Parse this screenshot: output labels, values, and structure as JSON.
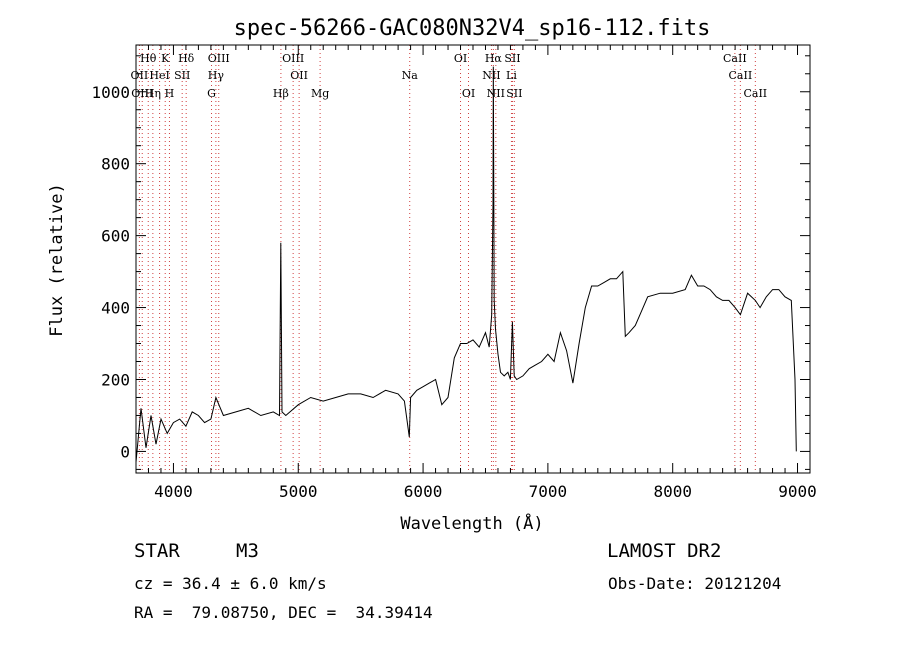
{
  "chart_data": {
    "type": "line",
    "title": "spec-56266-GAC080N32V4_sp16-112.fits",
    "xlabel": "Wavelength (Å)",
    "ylabel": "Flux (relative)",
    "xlim": [
      3700,
      9100
    ],
    "ylim": [
      -60,
      1130
    ],
    "x_ticks": [
      4000,
      5000,
      6000,
      7000,
      8000,
      9000
    ],
    "y_ticks": [
      0,
      200,
      400,
      600,
      800,
      1000
    ],
    "grid": false,
    "series": [
      {
        "color": "#000000",
        "x": [
          3700,
          3740,
          3780,
          3820,
          3860,
          3900,
          3950,
          4000,
          4050,
          4100,
          4150,
          4200,
          4250,
          4300,
          4340,
          4400,
          4500,
          4600,
          4700,
          4800,
          4850,
          4860,
          4870,
          4900,
          5000,
          5100,
          5200,
          5300,
          5400,
          5450,
          5500,
          5600,
          5700,
          5800,
          5850,
          5890,
          5900,
          5950,
          6000,
          6050,
          6100,
          6150,
          6200,
          6250,
          6300,
          6350,
          6400,
          6450,
          6500,
          6530,
          6550,
          6560,
          6563,
          6570,
          6580,
          6600,
          6620,
          6650,
          6680,
          6700,
          6716,
          6730,
          6750,
          6800,
          6850,
          6900,
          6950,
          7000,
          7050,
          7100,
          7150,
          7200,
          7250,
          7300,
          7350,
          7400,
          7450,
          7500,
          7550,
          7600,
          7620,
          7650,
          7700,
          7750,
          7800,
          7900,
          8000,
          8100,
          8150,
          8200,
          8250,
          8300,
          8350,
          8400,
          8450,
          8500,
          8542,
          8600,
          8662,
          8700,
          8750,
          8800,
          8850,
          8900,
          8950,
          8980,
          8990
        ],
        "y": [
          -30,
          120,
          10,
          100,
          20,
          90,
          50,
          80,
          90,
          70,
          110,
          100,
          80,
          90,
          150,
          100,
          110,
          120,
          100,
          110,
          100,
          580,
          110,
          100,
          130,
          150,
          140,
          150,
          160,
          160,
          160,
          150,
          170,
          160,
          140,
          40,
          150,
          170,
          180,
          190,
          200,
          130,
          150,
          260,
          300,
          300,
          310,
          290,
          330,
          290,
          380,
          690,
          1070,
          420,
          340,
          270,
          220,
          210,
          220,
          200,
          360,
          210,
          200,
          210,
          230,
          240,
          250,
          270,
          250,
          330,
          280,
          190,
          300,
          400,
          460,
          460,
          470,
          480,
          480,
          500,
          320,
          330,
          350,
          390,
          430,
          440,
          440,
          450,
          490,
          460,
          460,
          450,
          430,
          420,
          420,
          400,
          380,
          440,
          420,
          400,
          430,
          450,
          450,
          430,
          420,
          200,
          0
        ]
      }
    ],
    "line_labels": [
      {
        "label": "Hθ",
        "x": 3798,
        "row": 1,
        "color": "#d04040"
      },
      {
        "label": "K",
        "x": 3934,
        "row": 1,
        "color": "#d04040"
      },
      {
        "label": "Hδ",
        "x": 4102,
        "row": 1,
        "color": "#d04040"
      },
      {
        "label": "OIII",
        "x": 4363,
        "row": 1,
        "color": "#d04040"
      },
      {
        "label": "OIII",
        "x": 4959,
        "row": 1,
        "color": "#d04040"
      },
      {
        "label": "OI",
        "x": 6300,
        "row": 1,
        "color": "#d04040"
      },
      {
        "label": "Hα",
        "x": 6563,
        "row": 1,
        "color": "#d04040"
      },
      {
        "label": "SII",
        "x": 6716,
        "row": 1,
        "color": "#d04040"
      },
      {
        "label": "CaII",
        "x": 8498,
        "row": 1,
        "color": "#d04040"
      },
      {
        "label": "OII",
        "x": 3727,
        "row": 2,
        "color": "#d04040"
      },
      {
        "label": "HeI",
        "x": 3889,
        "row": 2,
        "color": "#d04040"
      },
      {
        "label": "SII",
        "x": 4070,
        "row": 2,
        "color": "#d04040"
      },
      {
        "label": "Hγ",
        "x": 4340,
        "row": 2,
        "color": "#d04040"
      },
      {
        "label": "OII",
        "x": 5007,
        "row": 2,
        "color": "#d04040"
      },
      {
        "label": "Na",
        "x": 5893,
        "row": 2,
        "color": "#d04040"
      },
      {
        "label": "NII",
        "x": 6548,
        "row": 2,
        "color": "#d04040"
      },
      {
        "label": "Li",
        "x": 6708,
        "row": 2,
        "color": "#d04040"
      },
      {
        "label": "CaII",
        "x": 8542,
        "row": 2,
        "color": "#d04040"
      },
      {
        "label": "OIII",
        "x": 3750,
        "row": 3,
        "color": "#d04040"
      },
      {
        "label": "Hη",
        "x": 3835,
        "row": 3,
        "color": "#d04040"
      },
      {
        "label": "H",
        "x": 3968,
        "row": 3,
        "color": "#d04040"
      },
      {
        "label": "G",
        "x": 4305,
        "row": 3,
        "color": "#d04040"
      },
      {
        "label": "Hβ",
        "x": 4861,
        "row": 3,
        "color": "#d04040"
      },
      {
        "label": "Mg",
        "x": 5175,
        "row": 3,
        "color": "#d04040"
      },
      {
        "label": "OI",
        "x": 6364,
        "row": 3,
        "color": "#d04040"
      },
      {
        "label": "NII",
        "x": 6583,
        "row": 3,
        "color": "#d04040"
      },
      {
        "label": "SII",
        "x": 6731,
        "row": 3,
        "color": "#d04040"
      },
      {
        "label": "CaII",
        "x": 8662,
        "row": 3,
        "color": "#d04040"
      }
    ]
  },
  "info": {
    "object_class": "STAR",
    "object_subclass": "M3",
    "survey": "LAMOST DR2",
    "cz": "cz = 36.4 ± 6.0 km/s",
    "obs_date": "Obs-Date: 20121204",
    "radec": "RA =  79.08750, DEC =  34.39414"
  }
}
